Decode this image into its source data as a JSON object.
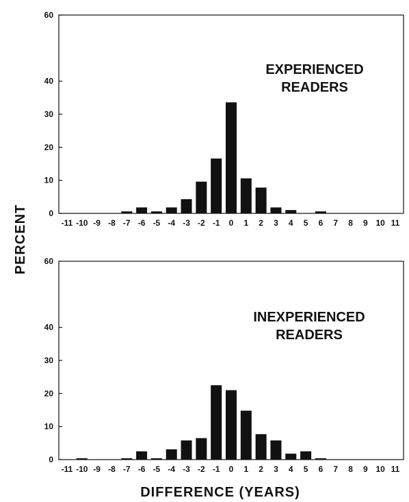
{
  "chart_data": [
    {
      "type": "bar",
      "annotation_lines": [
        "EXPERIENCED",
        "READERS"
      ],
      "ylim": [
        0,
        60
      ],
      "yticks": [
        "0",
        "10",
        "20",
        "30",
        "40",
        "60"
      ],
      "categories": [
        "-11",
        "-10",
        "-9",
        "-8",
        "-7",
        "-6",
        "-5",
        "-4",
        "-3",
        "-2",
        "-1",
        "0",
        "1",
        "2",
        "3",
        "4",
        "5",
        "6",
        "7",
        "8",
        "9",
        "10",
        "11"
      ],
      "values": [
        0,
        0,
        0,
        0,
        0.6,
        1.8,
        0.6,
        1.8,
        4.3,
        9.6,
        16.6,
        33.6,
        10.6,
        7.8,
        1.8,
        1.0,
        0,
        0.6,
        0,
        0,
        0,
        0,
        0
      ]
    },
    {
      "type": "bar",
      "annotation_lines": [
        "INEXPERIENCED",
        "READERS"
      ],
      "ylim": [
        0,
        60
      ],
      "yticks": [
        "0",
        "10",
        "20",
        "30",
        "40",
        "60"
      ],
      "categories": [
        "-11",
        "-10",
        "-9",
        "-8",
        "-7",
        "-6",
        "-5",
        "-4",
        "-3",
        "-2",
        "-1",
        "0",
        "1",
        "2",
        "3",
        "4",
        "5",
        "6",
        "7",
        "8",
        "9",
        "10",
        "11"
      ],
      "values": [
        0,
        0.4,
        0,
        0,
        0.4,
        2.5,
        0.4,
        3.1,
        5.8,
        6.5,
        22.5,
        21.0,
        14.8,
        7.7,
        5.8,
        1.8,
        2.5,
        0.4,
        0,
        0,
        0,
        0,
        0
      ]
    }
  ],
  "ylabel": "PERCENT",
  "xlabel": "DIFFERENCE (YEARS)"
}
